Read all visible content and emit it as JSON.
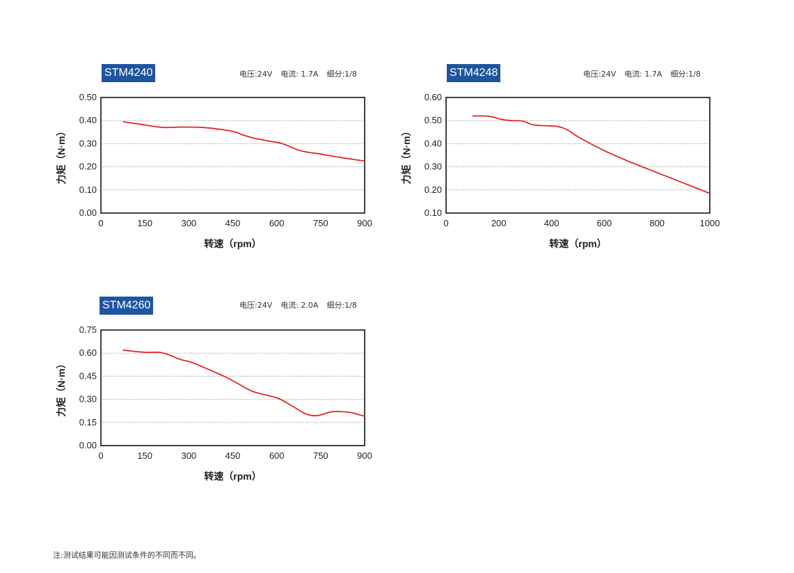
{
  "footnote": "注:测试结果可能因测试条件的不同而不同。",
  "colors": {
    "badge": "#1f55a0",
    "curve": "#e32626",
    "grid": "#9a9a9a"
  },
  "chart_data": [
    {
      "type": "line",
      "title": "STM4240",
      "specs": [
        "电压:24V",
        "电流: 1.7A",
        "细分:1/8"
      ],
      "xlabel": "转速（rpm）",
      "ylabel": "力矩（N·m）",
      "xlim": [
        0,
        900
      ],
      "ylim": [
        0,
        0.5
      ],
      "xticks": [
        "0",
        "150",
        "300",
        "450",
        "600",
        "750",
        "900"
      ],
      "yticks": [
        "0.00",
        "0.10",
        "0.20",
        "0.30",
        "0.40",
        "0.50"
      ],
      "grid": "horizontal-dotted",
      "series": [
        {
          "x": [
            75,
            130,
            180,
            220,
            280,
            350,
            420,
            460,
            480,
            520,
            580,
            620,
            680,
            750,
            820,
            900
          ],
          "y": [
            0.395,
            0.385,
            0.375,
            0.37,
            0.372,
            0.37,
            0.36,
            0.35,
            0.34,
            0.325,
            0.31,
            0.3,
            0.27,
            0.255,
            0.24,
            0.225
          ]
        }
      ]
    },
    {
      "type": "line",
      "title": "STM4248",
      "specs": [
        "电压:24V",
        "电流: 1.7A",
        "细分:1/8"
      ],
      "xlabel": "转速（rpm）",
      "ylabel": "力矩（N·m）",
      "xlim": [
        0,
        1000
      ],
      "ylim": [
        0.1,
        0.6
      ],
      "xticks": [
        "0",
        "200",
        "400",
        "600",
        "800",
        "1000"
      ],
      "yticks": [
        "0.10",
        "0.20",
        "0.30",
        "0.40",
        "0.50",
        "0.60"
      ],
      "grid": "horizontal-dotted",
      "series": [
        {
          "x": [
            100,
            150,
            180,
            210,
            250,
            290,
            320,
            340,
            370,
            420,
            460,
            500,
            600,
            700,
            800,
            900,
            1000
          ],
          "y": [
            0.52,
            0.52,
            0.515,
            0.505,
            0.5,
            0.498,
            0.485,
            0.48,
            0.478,
            0.475,
            0.46,
            0.43,
            0.37,
            0.32,
            0.275,
            0.23,
            0.185
          ]
        }
      ]
    },
    {
      "type": "line",
      "title": "STM4260",
      "specs": [
        "电压:24V",
        "电流: 2.0A",
        "细分:1/8"
      ],
      "xlabel": "转速（rpm）",
      "ylabel": "力矩（N·m）",
      "xlim": [
        0,
        900
      ],
      "ylim": [
        0,
        0.75
      ],
      "xticks": [
        "0",
        "150",
        "300",
        "450",
        "600",
        "750",
        "900"
      ],
      "yticks": [
        "0.00",
        "0.15",
        "0.30",
        "0.45",
        "0.60",
        "0.75"
      ],
      "grid": "horizontal-dotted",
      "series": [
        {
          "x": [
            75,
            120,
            160,
            200,
            230,
            270,
            310,
            360,
            420,
            470,
            520,
            600,
            650,
            700,
            740,
            790,
            850,
            900
          ],
          "y": [
            0.62,
            0.61,
            0.605,
            0.605,
            0.59,
            0.56,
            0.54,
            0.5,
            0.45,
            0.4,
            0.35,
            0.31,
            0.26,
            0.205,
            0.195,
            0.22,
            0.215,
            0.19
          ]
        }
      ]
    }
  ]
}
